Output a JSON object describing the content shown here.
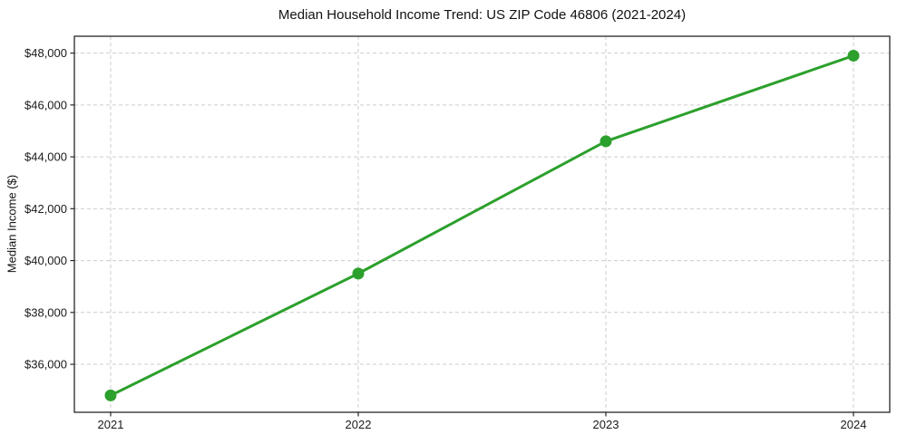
{
  "chart_data": {
    "type": "line",
    "title": "Median Household Income Trend: US ZIP Code 46806 (2021-2024)",
    "xlabel": "",
    "ylabel": "Median Income ($)",
    "categories": [
      "2021",
      "2022",
      "2023",
      "2024"
    ],
    "series": [
      {
        "name": "Median Household Income",
        "values": [
          34800,
          39500,
          44600,
          47900
        ]
      }
    ],
    "yticks": [
      36000,
      38000,
      40000,
      42000,
      44000,
      46000,
      48000
    ],
    "ytick_prefix": "$",
    "ylim": [
      34150,
      48650
    ],
    "grid": true,
    "grid_style": "dashed",
    "legend_position": "none",
    "line_color": "#2ca02c",
    "marker": "circle",
    "grid_color": "#cccccc",
    "spine_color": "#262626",
    "text_color": "#1a1a1a",
    "background_color": "#ffffff"
  }
}
